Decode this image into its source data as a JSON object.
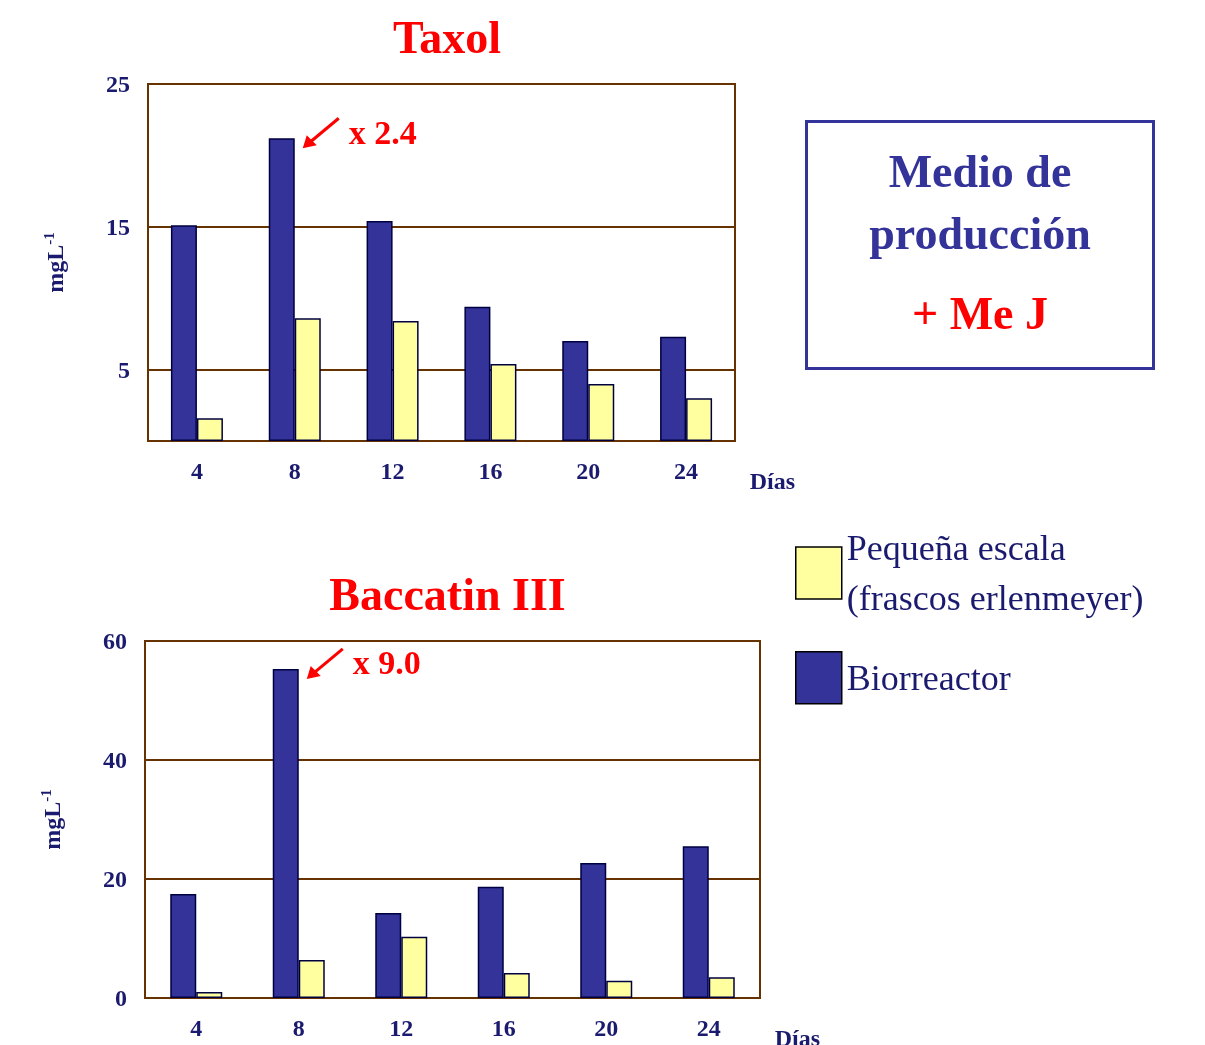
{
  "chart_data": [
    {
      "type": "bar",
      "title": "Taxol",
      "xlabel": "Días",
      "ylabel": "mgL$^{-1}$",
      "categories": [
        "4",
        "8",
        "12",
        "16",
        "20",
        "24"
      ],
      "ylim": [
        0,
        25
      ],
      "yticks": [
        5,
        15,
        25
      ],
      "grid": "y",
      "legend": false,
      "series": [
        {
          "color": "#333399",
          "values": [
            15.1,
            21.2,
            15.4,
            9.4,
            7.0,
            7.3
          ]
        },
        {
          "color": "#ffffa0",
          "values": [
            1.6,
            8.6,
            8.4,
            5.4,
            4.0,
            3.0
          ]
        }
      ],
      "annotations": [
        {
          "text": "x 2.4",
          "x": "8",
          "y": 21.2
        }
      ]
    },
    {
      "type": "other",
      "title": "Medio de producción",
      "annotations": [
        "+ Me J"
      ]
    },
    {
      "type": "bar",
      "title": "Baccatin III",
      "xlabel": "Días",
      "ylabel": "mgL$^{-1}$",
      "categories": [
        "4",
        "8",
        "12",
        "16",
        "20",
        "24"
      ],
      "ylim": [
        0,
        60
      ],
      "yticks": [
        0,
        20,
        40,
        60
      ],
      "grid": "y",
      "legend": "top right",
      "series": [
        {
          "name": "Biorreactor",
          "color": "#333399",
          "values": [
            17.5,
            55.3,
            14.3,
            18.7,
            22.7,
            25.5
          ]
        },
        {
          "name": "Pequeña escala\n(frascos erlenmeyer)",
          "color": "#ffffa0",
          "values": [
            1.0,
            6.4,
            10.3,
            4.2,
            2.9,
            3.5
          ]
        }
      ],
      "annotations": [
        {
          "text": "x 9.0",
          "x": "8",
          "y": 55.3
        }
      ]
    }
  ]
}
